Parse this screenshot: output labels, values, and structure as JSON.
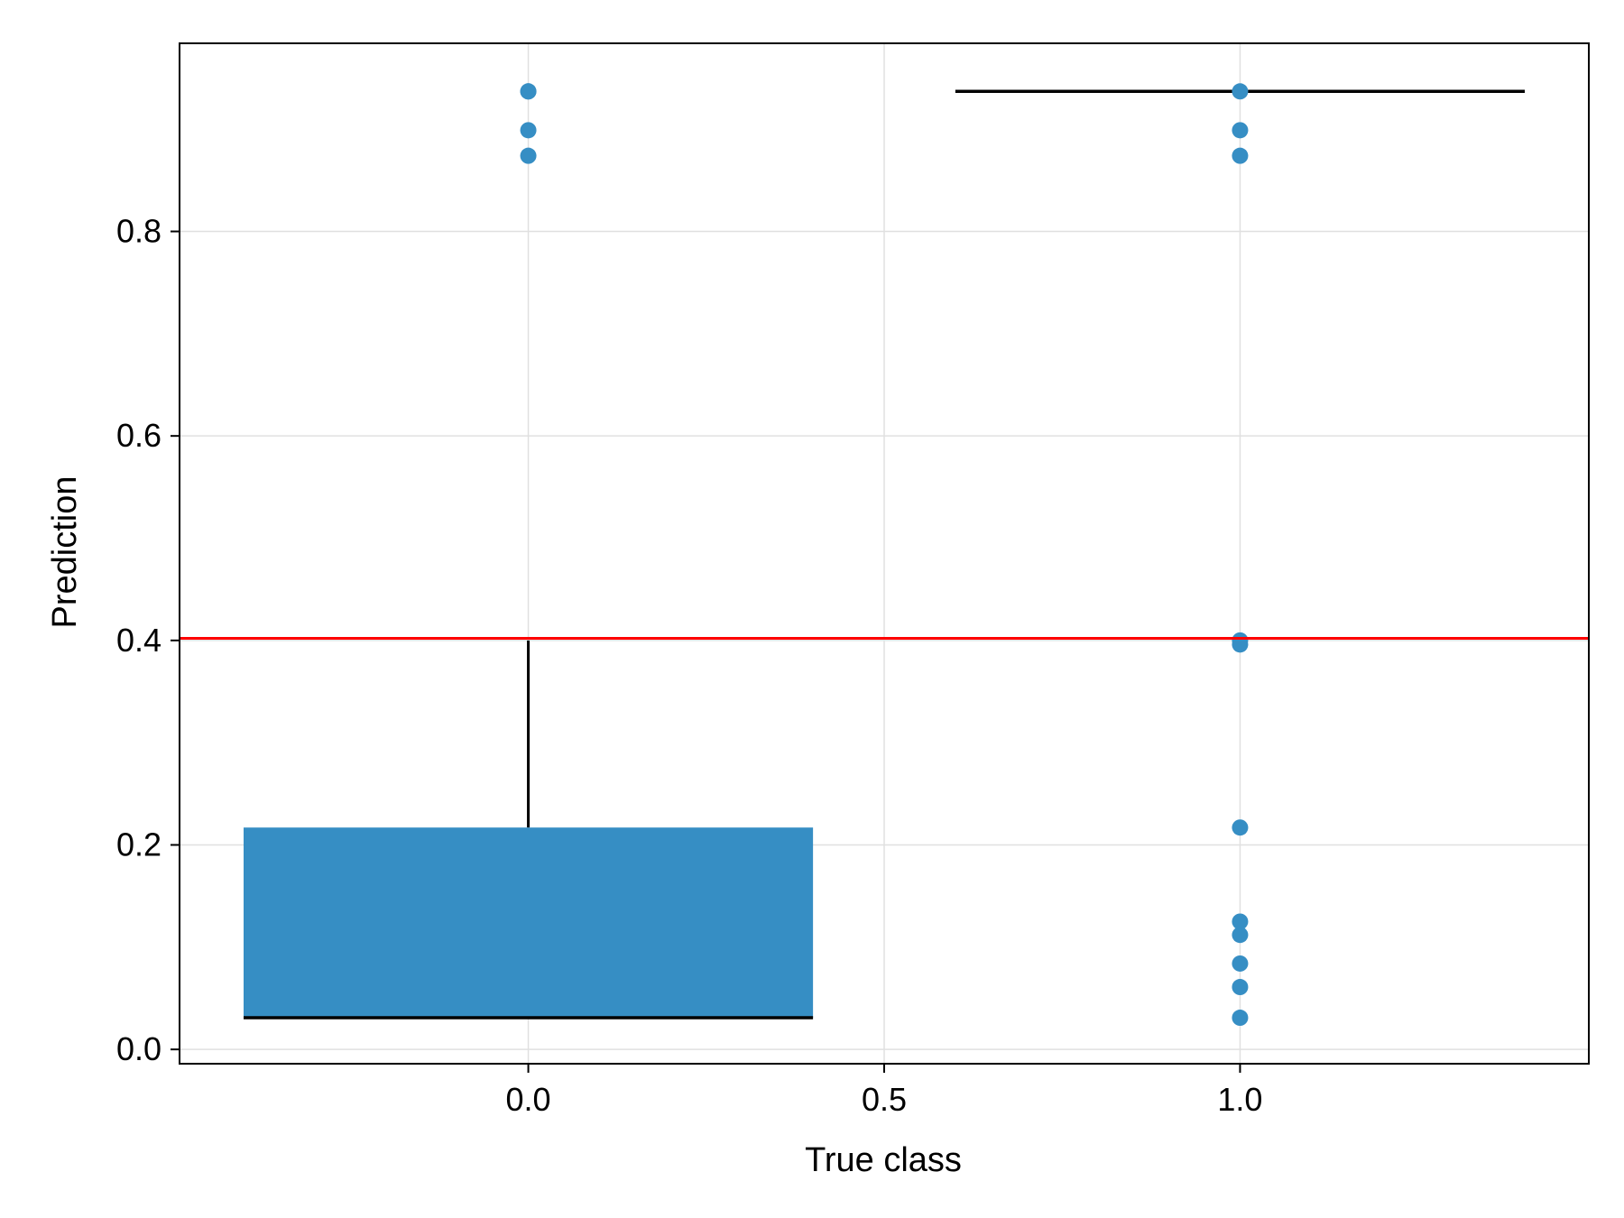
{
  "chart_data": {
    "type": "box",
    "title": "",
    "xlabel": "True class",
    "ylabel": "Prediction",
    "xlim": [
      -0.49,
      1.49
    ],
    "ylim": [
      -0.014,
      0.984
    ],
    "x_ticks": [
      0.0,
      0.5,
      1.0
    ],
    "x_tick_labels": [
      "0.0",
      "0.5",
      "1.0"
    ],
    "y_ticks": [
      0.0,
      0.2,
      0.4,
      0.6,
      0.8
    ],
    "y_tick_labels": [
      "0.0",
      "0.2",
      "0.4",
      "0.6",
      "0.8"
    ],
    "grid": true,
    "threshold_line": {
      "y": 0.402,
      "color": "#ff0000"
    },
    "boxes": [
      {
        "x": 0.0,
        "width": 0.8,
        "q1": 0.031,
        "median": 0.031,
        "q3": 0.217,
        "whisker_low": 0.031,
        "whisker_high": 0.4,
        "outliers": [
          0.937,
          0.937,
          0.899,
          0.874
        ]
      },
      {
        "x": 1.0,
        "width": 0.8,
        "q1": 0.937,
        "median": 0.937,
        "q3": 0.937,
        "whisker_low": 0.937,
        "whisker_high": 0.937,
        "outliers": [
          0.937,
          0.899,
          0.874,
          0.4,
          0.396,
          0.217,
          0.125,
          0.112,
          0.084,
          0.061,
          0.031
        ]
      }
    ],
    "box_color": "#368ec4",
    "point_color": "#368ec4",
    "line_color": "#000000"
  }
}
